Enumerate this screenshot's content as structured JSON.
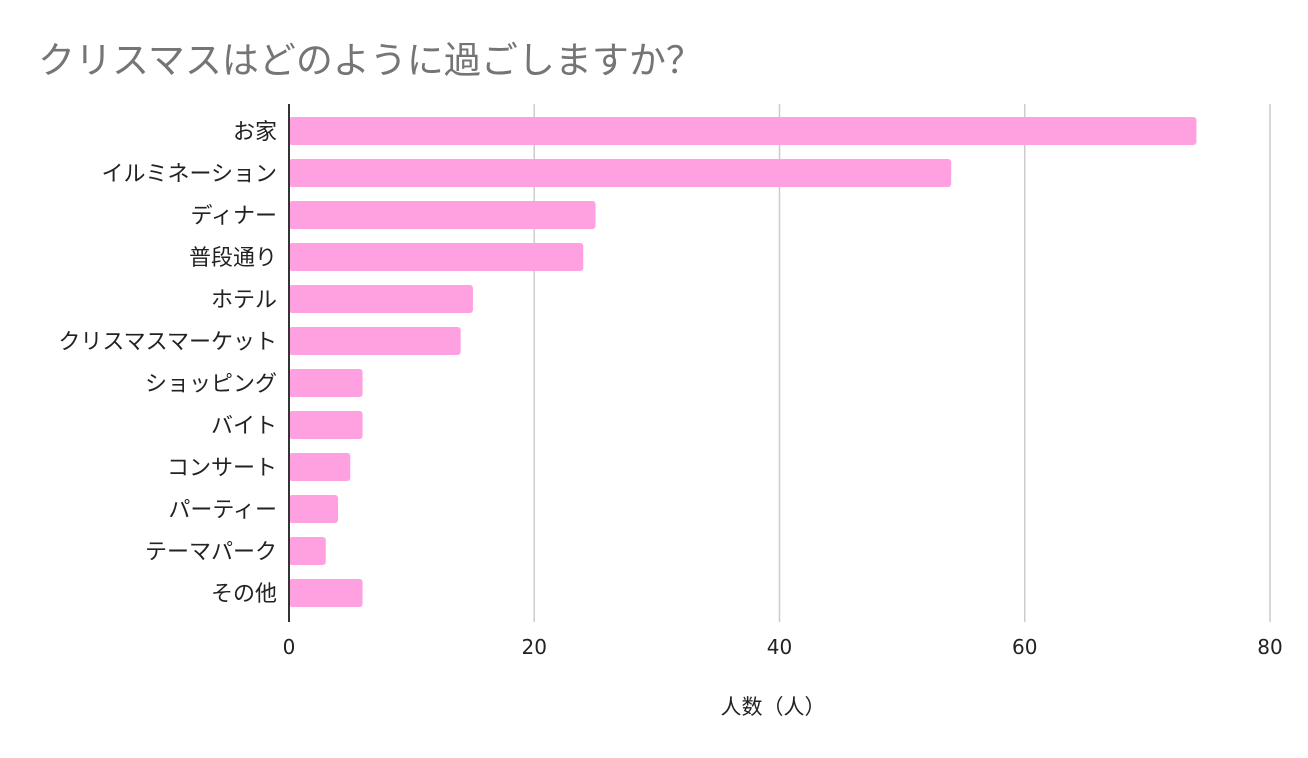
{
  "chart_data": {
    "type": "bar",
    "orientation": "horizontal",
    "title": "クリスマスはどのように過ごしますか？",
    "xlabel": "人数（人）",
    "ylabel": "",
    "categories": [
      "お家",
      "イルミネーション",
      "ディナー",
      "普段通り",
      "ホテル",
      "クリスマスマーケット",
      "ショッピング",
      "バイト",
      "コンサート",
      "パーティー",
      "テーマパーク",
      "その他"
    ],
    "values": [
      74,
      54,
      25,
      24,
      15,
      14,
      6,
      6,
      5,
      4,
      3,
      6
    ],
    "xlim": [
      0,
      80
    ],
    "xticks": [
      "0",
      "20",
      "40",
      "60",
      "80"
    ],
    "grid": true,
    "legend": "none",
    "bar_color": "#ffa1e0",
    "title_color": "#757575",
    "grid_color": "#cccccc",
    "axis_color": "#333333"
  }
}
